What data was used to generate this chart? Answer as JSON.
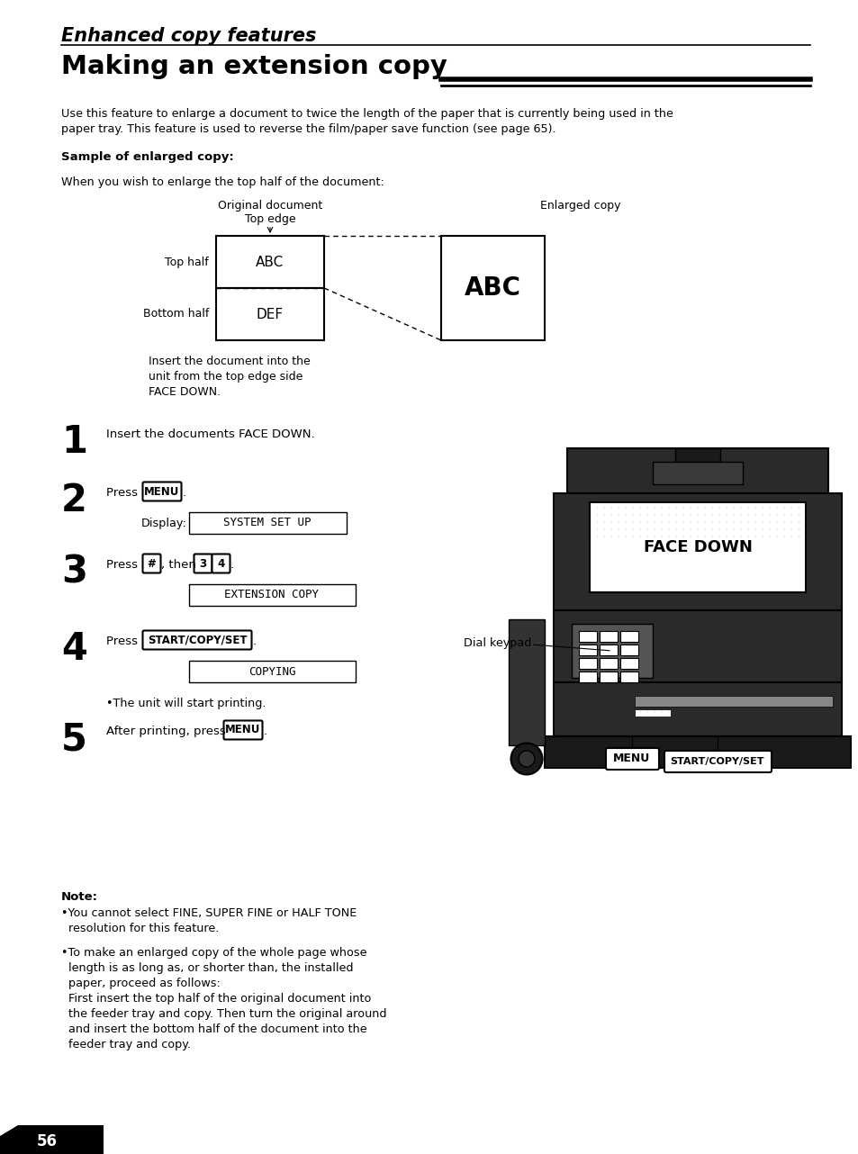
{
  "title_italic": "Enhanced copy features",
  "title_main": "Making an extension copy",
  "body_text1": "Use this feature to enlarge a document to twice the length of the paper that is currently being used in the\npaper tray. This feature is used to reverse the film/paper save function (see page 65).",
  "sample_label": "Sample of enlarged copy:",
  "when_text": "When you wish to enlarge the top half of the document:",
  "orig_doc_label": "Original document\nTop edge",
  "enlarged_label": "Enlarged copy",
  "top_half_label": "Top half",
  "bottom_half_label": "Bottom half",
  "abc_small": "ABC",
  "def_small": "DEF",
  "abc_large": "ABC",
  "insert_text": "Insert the document into the\nunit from the top edge side\nFACE DOWN.",
  "step1": "Insert the documents FACE DOWN.",
  "step2_press": "Press ",
  "step2_btn": "MENU",
  "step2_display": "Display:",
  "step2_screen": "SYSTEM SET UP",
  "step3_press": "Press ",
  "step3_btn1": "#",
  "step3_then": ", then ",
  "step3_btn2": "3",
  "step3_btn3": "4",
  "step3_period": ".",
  "step3_screen": "EXTENSION COPY",
  "step4_press": "Press ",
  "step4_btn": "START/COPY/SET",
  "step4_period": ".",
  "step4_screen": "COPYING",
  "step4_note": "•The unit will start printing.",
  "step5_press": "After printing, press ",
  "step5_btn": "MENU",
  "step5_period": ".",
  "dial_keypad": "Dial keypad",
  "face_down": "FACE DOWN",
  "menu_btn": "MENU",
  "start_btn": "START/COPY/SET",
  "note_title": "Note:",
  "note1": "•You cannot select FINE, SUPER FINE or HALF TONE\n  resolution for this feature.",
  "note2": "•To make an enlarged copy of the whole page whose\n  length is as long as, or shorter than, the installed\n  paper, proceed as follows:\n  First insert the top half of the original document into\n  the feeder tray and copy. Then turn the original around\n  and insert the bottom half of the document into the\n  feeder tray and copy.",
  "page_num": "56",
  "bg_color": "#ffffff",
  "text_color": "#000000"
}
